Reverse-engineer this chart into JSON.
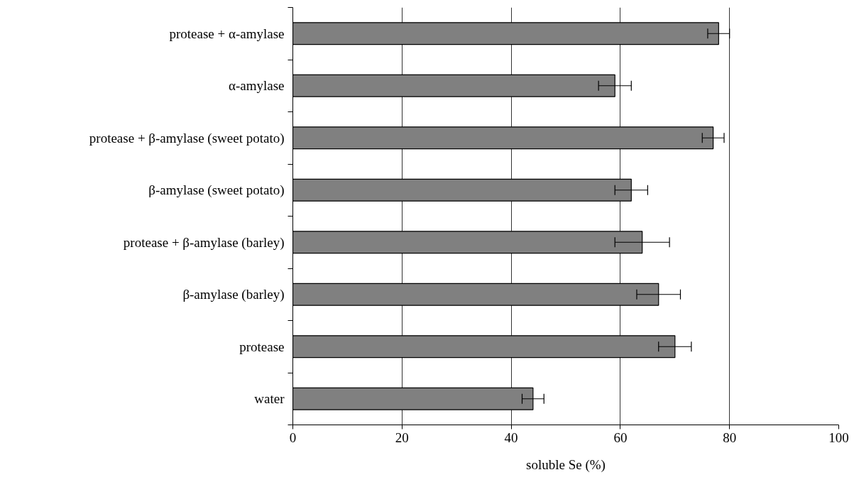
{
  "chart_data": {
    "type": "bar",
    "orientation": "horizontal",
    "xlabel": "soluble Se (%)",
    "categories": [
      "protease + α-amylase",
      "α-amylase",
      "protease + β-amylase (sweet potato)",
      "β-amylase (sweet potato)",
      "protease + β-amylase (barley)",
      "β-amylase (barley)",
      "protease",
      "water"
    ],
    "values": [
      78,
      59,
      77,
      62,
      64,
      67,
      70,
      44
    ],
    "errors": [
      2,
      3,
      2,
      3,
      5,
      4,
      3,
      2
    ],
    "color": "#808080",
    "xlim": [
      0,
      100
    ],
    "xticks": [
      0,
      20,
      40,
      60,
      80,
      100
    ],
    "grid": "x"
  }
}
